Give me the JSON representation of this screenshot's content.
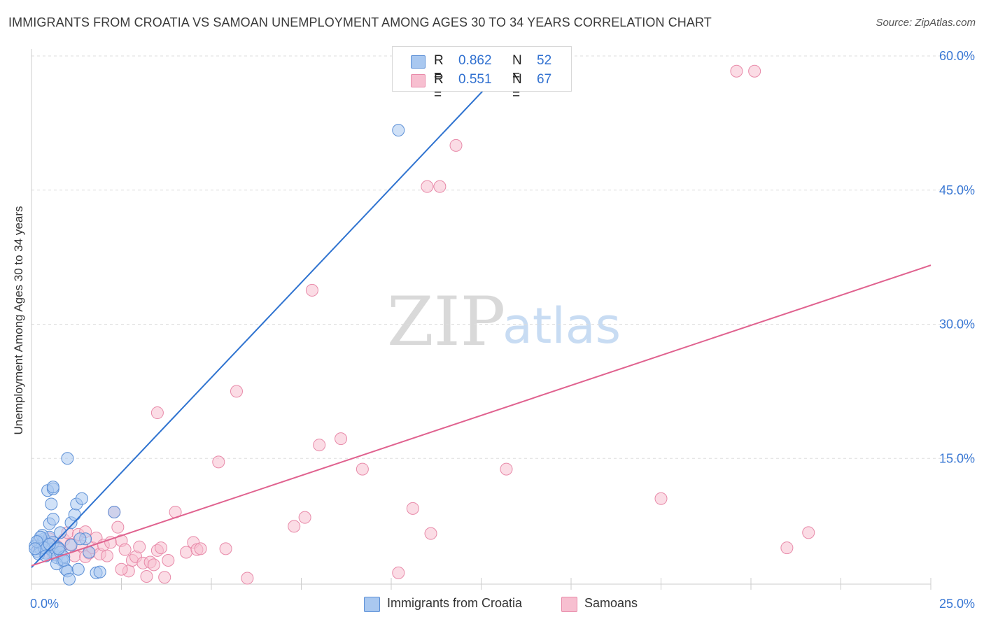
{
  "title": "IMMIGRANTS FROM CROATIA VS SAMOAN UNEMPLOYMENT AMONG AGES 30 TO 34 YEARS CORRELATION CHART",
  "source": "Source: ZipAtlas.com",
  "watermark": {
    "zip": "ZIP",
    "atlas": "atlas"
  },
  "colors": {
    "blue_fill": "#a9c8f0",
    "blue_stroke": "#5b8fd6",
    "blue_line": "#2f73d0",
    "pink_fill": "#f7bfd0",
    "pink_stroke": "#e88aa9",
    "pink_line": "#e0628f",
    "tick_blue": "#3a78d4",
    "grid": "#dddddd"
  },
  "legend": {
    "rows": [
      {
        "r_label": "R =",
        "r_value": "0.862",
        "n_label": "N =",
        "n_value": "52"
      },
      {
        "r_label": "R =",
        "r_value": "0.551",
        "n_label": "N =",
        "n_value": "67"
      }
    ]
  },
  "bottom_legend": {
    "series1": "Immigrants from Croatia",
    "series2": "Samoans"
  },
  "chart_data": {
    "type": "scatter",
    "title": "IMMIGRANTS FROM CROATIA VS SAMOAN UNEMPLOYMENT AMONG AGES 30 TO 34 YEARS CORRELATION CHART",
    "xlabel": "",
    "ylabel": "Unemployment Among Ages 30 to 34 years",
    "xlim": [
      0,
      25
    ],
    "ylim": [
      0,
      63
    ],
    "x_tick_labels": [
      {
        "value": 0,
        "label": "0.0%"
      },
      {
        "value": 25,
        "label": "25.0%"
      }
    ],
    "y_tick_labels": [
      {
        "value": 15,
        "label": "15.0%"
      },
      {
        "value": 30,
        "label": "30.0%"
      },
      {
        "value": 45,
        "label": "45.0%"
      },
      {
        "value": 60,
        "label": "60.0%"
      }
    ],
    "x_gridlines": [
      2.5,
      5,
      7.5,
      10,
      12.5,
      15,
      17.5,
      20,
      22.5,
      25
    ],
    "series": [
      {
        "name": "Immigrants from Croatia",
        "R": 0.862,
        "N": 52,
        "trend": {
          "x": [
            0,
            13.35
          ],
          "y": [
            2.8,
            59.5
          ]
        },
        "points": [
          [
            0.1,
            5.2
          ],
          [
            0.15,
            4.6
          ],
          [
            0.2,
            5.8
          ],
          [
            0.25,
            4.9
          ],
          [
            0.3,
            5.5
          ],
          [
            0.35,
            6.0
          ],
          [
            0.4,
            4.4
          ],
          [
            0.45,
            5.1
          ],
          [
            0.5,
            6.2
          ],
          [
            0.55,
            4.8
          ],
          [
            0.6,
            5.6
          ],
          [
            0.65,
            4.2
          ],
          [
            0.7,
            3.9
          ],
          [
            0.75,
            5.0
          ],
          [
            0.8,
            4.5
          ],
          [
            0.85,
            3.6
          ],
          [
            0.9,
            4.0
          ],
          [
            0.95,
            2.6
          ],
          [
            1.0,
            2.4
          ],
          [
            1.05,
            1.5
          ],
          [
            1.1,
            5.3
          ],
          [
            0.3,
            6.4
          ],
          [
            0.5,
            7.7
          ],
          [
            0.6,
            8.2
          ],
          [
            0.55,
            9.9
          ],
          [
            0.45,
            11.4
          ],
          [
            0.6,
            11.6
          ],
          [
            0.6,
            11.8
          ],
          [
            1.0,
            15.0
          ],
          [
            1.1,
            7.8
          ],
          [
            1.2,
            8.7
          ],
          [
            1.25,
            9.9
          ],
          [
            1.4,
            10.5
          ],
          [
            1.5,
            6.0
          ],
          [
            1.6,
            4.5
          ],
          [
            1.8,
            2.2
          ],
          [
            1.9,
            2.3
          ],
          [
            2.3,
            9.0
          ],
          [
            1.3,
            2.6
          ],
          [
            0.8,
            6.7
          ],
          [
            0.7,
            3.2
          ],
          [
            0.9,
            3.6
          ],
          [
            0.2,
            4.3
          ],
          [
            0.25,
            6.2
          ],
          [
            0.35,
            5.0
          ],
          [
            0.4,
            4.1
          ],
          [
            0.15,
            5.7
          ],
          [
            0.75,
            4.9
          ],
          [
            1.35,
            6.0
          ],
          [
            10.2,
            51.7
          ],
          [
            0.1,
            4.9
          ],
          [
            0.5,
            5.4
          ]
        ]
      },
      {
        "name": "Samoans",
        "R": 0.551,
        "N": 67,
        "trend": {
          "x": [
            0,
            25
          ],
          "y": [
            3.0,
            36.6
          ]
        },
        "points": [
          [
            0.2,
            5.0
          ],
          [
            0.3,
            5.6
          ],
          [
            0.4,
            4.6
          ],
          [
            0.5,
            6.0
          ],
          [
            0.6,
            4.3
          ],
          [
            0.7,
            5.2
          ],
          [
            0.8,
            4.7
          ],
          [
            0.9,
            5.9
          ],
          [
            1.0,
            6.7
          ],
          [
            1.1,
            5.4
          ],
          [
            1.2,
            4.1
          ],
          [
            1.3,
            6.5
          ],
          [
            1.4,
            5.2
          ],
          [
            1.5,
            6.8
          ],
          [
            1.6,
            4.4
          ],
          [
            1.7,
            5.0
          ],
          [
            1.8,
            6.1
          ],
          [
            1.9,
            4.3
          ],
          [
            2.0,
            5.3
          ],
          [
            2.1,
            4.1
          ],
          [
            2.2,
            5.6
          ],
          [
            2.3,
            9.0
          ],
          [
            2.4,
            7.3
          ],
          [
            2.5,
            5.8
          ],
          [
            2.6,
            4.8
          ],
          [
            2.7,
            2.4
          ],
          [
            2.8,
            3.6
          ],
          [
            2.9,
            4.0
          ],
          [
            3.0,
            5.1
          ],
          [
            3.1,
            3.3
          ],
          [
            3.2,
            1.8
          ],
          [
            3.3,
            3.4
          ],
          [
            3.4,
            3.1
          ],
          [
            3.5,
            4.7
          ],
          [
            3.6,
            5.0
          ],
          [
            3.7,
            1.7
          ],
          [
            3.8,
            3.6
          ],
          [
            4.0,
            9.0
          ],
          [
            4.3,
            4.5
          ],
          [
            4.5,
            5.6
          ],
          [
            4.6,
            4.8
          ],
          [
            4.7,
            4.9
          ],
          [
            5.2,
            14.6
          ],
          [
            5.4,
            4.9
          ],
          [
            5.7,
            22.5
          ],
          [
            6.0,
            1.6
          ],
          [
            7.3,
            7.4
          ],
          [
            7.6,
            8.4
          ],
          [
            8.0,
            16.5
          ],
          [
            8.6,
            17.2
          ],
          [
            9.2,
            13.8
          ],
          [
            10.2,
            2.2
          ],
          [
            10.6,
            9.4
          ],
          [
            11.1,
            6.6
          ],
          [
            13.2,
            13.8
          ],
          [
            17.5,
            10.5
          ],
          [
            21.0,
            5.0
          ],
          [
            21.6,
            6.7
          ],
          [
            3.5,
            20.1
          ],
          [
            7.8,
            33.8
          ],
          [
            11.0,
            45.4
          ],
          [
            11.35,
            45.4
          ],
          [
            11.8,
            50.0
          ],
          [
            19.6,
            58.3
          ],
          [
            20.1,
            58.3
          ],
          [
            2.5,
            2.6
          ],
          [
            1.5,
            4.0
          ]
        ]
      }
    ]
  }
}
